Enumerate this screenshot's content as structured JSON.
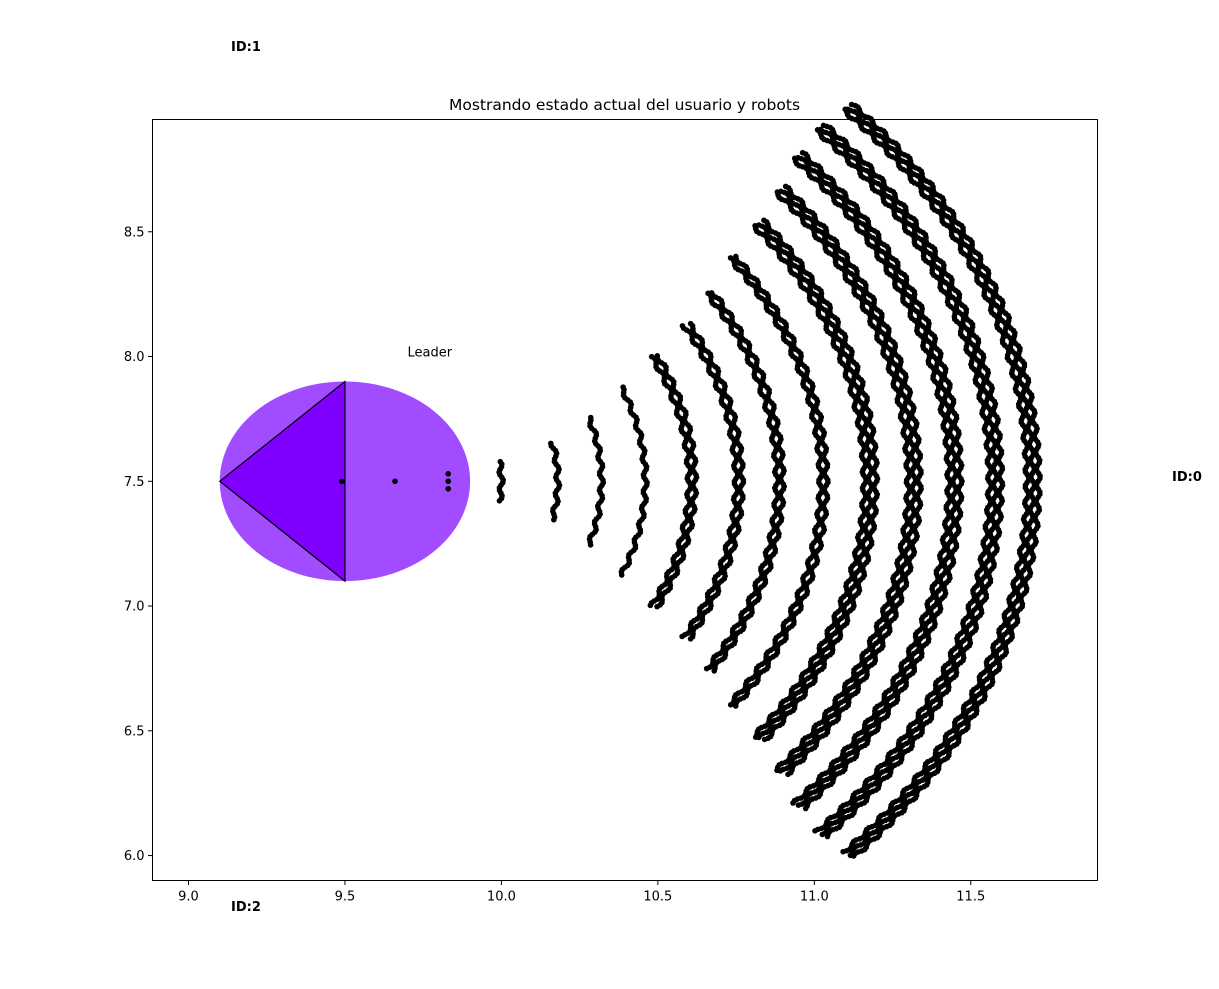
{
  "chart_data": {
    "type": "scatter",
    "title": "Mostrando estado actual del usuario y robots",
    "xlabel": "",
    "ylabel": "",
    "xlim": [
      8.885,
      9.905
    ],
    "ylim": [
      5.9,
      8.95
    ],
    "xlim_note": "",
    "x_range": [
      8.885,
      11.905
    ],
    "y_range": [
      5.9,
      8.95
    ],
    "x_ticks": [
      9.0,
      9.5,
      10.0,
      10.5,
      11.0,
      11.5
    ],
    "x_tick_labels": [
      "9.0",
      "9.5",
      "10.0",
      "10.5",
      "11.0",
      "11.5"
    ],
    "y_ticks": [
      6.0,
      6.5,
      7.0,
      7.5,
      8.0,
      8.5
    ],
    "y_tick_labels": [
      "6.0",
      "6.5",
      "7.0",
      "7.5",
      "8.0",
      "8.5"
    ],
    "grid": false,
    "legend": "none",
    "ellipse": {
      "cx": 9.5,
      "cy": 7.5,
      "rx": 0.4,
      "ry": 0.4,
      "color": "#a14cff"
    },
    "triangle": {
      "points": [
        [
          9.1,
          7.5
        ],
        [
          9.5,
          7.9
        ],
        [
          9.5,
          7.1
        ]
      ],
      "color": "#7f00ff",
      "edge": "#000000"
    },
    "leader_annotation": {
      "text": "Leader",
      "x": 9.7,
      "y": 8.0
    },
    "inner_points": [
      [
        9.49,
        7.5
      ],
      [
        9.66,
        7.5
      ],
      [
        9.83,
        7.47
      ],
      [
        9.83,
        7.5
      ],
      [
        9.83,
        7.53
      ]
    ],
    "arcs": [
      {
        "center_x": 9.5,
        "radius": 0.5,
        "half_angle_deg": 9
      },
      {
        "center_x": 9.5,
        "radius": 0.68,
        "half_angle_deg": 13
      },
      {
        "center_x": 9.5,
        "radius": 0.82,
        "half_angle_deg": 18
      },
      {
        "center_x": 9.5,
        "radius": 0.96,
        "half_angle_deg": 23
      },
      {
        "center_x": 9.5,
        "radius": 1.1,
        "half_angle_deg": 27
      },
      {
        "center_x": 9.5,
        "radius": 1.25,
        "half_angle_deg": 30
      },
      {
        "center_x": 9.5,
        "radius": 1.38,
        "half_angle_deg": 33
      },
      {
        "center_x": 9.5,
        "radius": 1.52,
        "half_angle_deg": 36
      },
      {
        "center_x": 9.5,
        "radius": 1.66,
        "half_angle_deg": 38
      },
      {
        "center_x": 9.5,
        "radius": 1.8,
        "half_angle_deg": 40
      },
      {
        "center_x": 9.5,
        "radius": 1.93,
        "half_angle_deg": 42
      },
      {
        "center_x": 9.5,
        "radius": 2.06,
        "half_angle_deg": 43
      },
      {
        "center_x": 9.5,
        "radius": 2.18,
        "half_angle_deg": 43
      }
    ],
    "point_color": "#000000"
  },
  "figure_labels": {
    "id0": "ID:0",
    "id1": "ID:1",
    "id2": "ID:2"
  }
}
